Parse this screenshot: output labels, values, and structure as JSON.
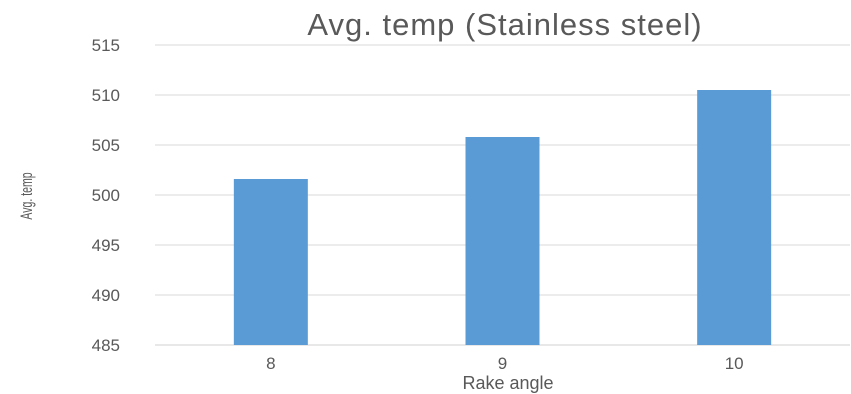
{
  "chart_data": {
    "type": "bar",
    "title": "Avg. temp (Stainless steel)",
    "xlabel": "Rake angle",
    "ylabel": "Avg. temp",
    "categories": [
      "8",
      "9",
      "10"
    ],
    "values": [
      501.6,
      505.8,
      510.5
    ],
    "ylim": [
      485,
      515
    ],
    "yticks": [
      "485",
      "490",
      "495",
      "500",
      "505",
      "510",
      "515"
    ],
    "grid": true,
    "legend": "none",
    "bar_color": "#5b9bd5"
  }
}
